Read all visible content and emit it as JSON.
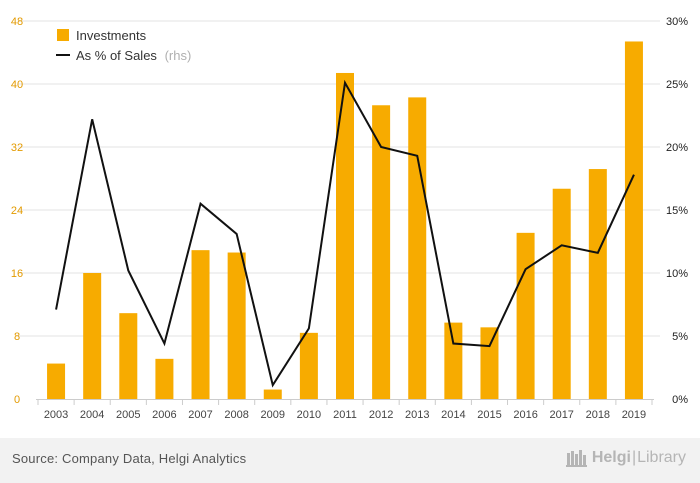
{
  "chart_data": {
    "type": "bar",
    "categories": [
      "2003",
      "2004",
      "2005",
      "2006",
      "2007",
      "2008",
      "2009",
      "2010",
      "2011",
      "2012",
      "2013",
      "2014",
      "2015",
      "2016",
      "2017",
      "2018",
      "2019"
    ],
    "series": [
      {
        "name": "Investments",
        "type": "bar",
        "axis": "left",
        "values": [
          4.5,
          16.0,
          10.9,
          5.1,
          18.9,
          18.6,
          1.2,
          8.4,
          41.4,
          37.3,
          38.3,
          9.7,
          9.1,
          21.1,
          26.7,
          29.2,
          45.4
        ]
      },
      {
        "name": "As % of Sales",
        "type": "line",
        "axis": "right",
        "values": [
          7.1,
          22.2,
          10.2,
          4.4,
          15.5,
          13.1,
          1.1,
          5.6,
          25.1,
          20.0,
          19.3,
          4.4,
          4.2,
          10.3,
          12.2,
          11.6,
          17.8
        ]
      }
    ],
    "legend": {
      "position": "top-left",
      "suffix": "(rhs)"
    },
    "y_left": {
      "ticks": [
        "0",
        "8",
        "16",
        "24",
        "32",
        "40",
        "48"
      ],
      "range": [
        0,
        48
      ]
    },
    "y_right": {
      "ticks": [
        "0%",
        "5%",
        "10%",
        "15%",
        "20%",
        "25%",
        "30%"
      ],
      "range": [
        0,
        30
      ]
    },
    "grid": true,
    "colors": {
      "bar": "#f7ab00",
      "line": "#111111",
      "left_tick": "#e39a00",
      "grid": "#e3e3e3",
      "axis_text": "#444444"
    }
  },
  "footer": {
    "source": "Source: Company Data, Helgi Analytics",
    "logo_part1": "Helgi",
    "logo_sep": "|",
    "logo_part2": "Library"
  }
}
